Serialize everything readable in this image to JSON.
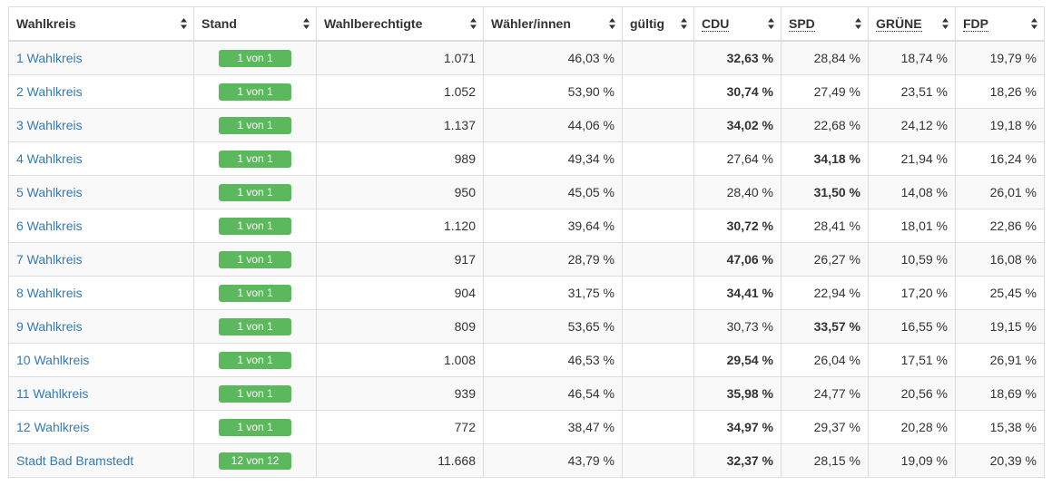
{
  "columns": [
    {
      "key": "wahlkreis",
      "label": "Wahlkreis",
      "party": false
    },
    {
      "key": "stand",
      "label": "Stand",
      "party": false
    },
    {
      "key": "wahlberechtigte",
      "label": "Wahlberechtigte",
      "party": false
    },
    {
      "key": "waehler",
      "label": "Wähler/innen",
      "party": false
    },
    {
      "key": "gueltig",
      "label": "gültig",
      "party": false
    },
    {
      "key": "cdu",
      "label": "CDU",
      "party": true
    },
    {
      "key": "spd",
      "label": "SPD",
      "party": true
    },
    {
      "key": "gruene",
      "label": "GRÜNE",
      "party": true
    },
    {
      "key": "fdp",
      "label": "FDP",
      "party": true
    }
  ],
  "sort_icon": "sort-up-down-icon",
  "colors": {
    "link": "#337ab7",
    "badge": "#5cb85c",
    "stripe": "#f9f9f9",
    "border": "#dddddd"
  },
  "rows": [
    {
      "wahlkreis": "1 Wahlkreis",
      "stand": "1 von 1",
      "wahlberechtigte": "1.071",
      "waehler": "46,03 %",
      "gueltig": "",
      "cdu": "32,63 %",
      "spd": "28,84 %",
      "gruene": "18,74 %",
      "fdp": "19,79 %",
      "winner": "cdu"
    },
    {
      "wahlkreis": "2 Wahlkreis",
      "stand": "1 von 1",
      "wahlberechtigte": "1.052",
      "waehler": "53,90 %",
      "gueltig": "",
      "cdu": "30,74 %",
      "spd": "27,49 %",
      "gruene": "23,51 %",
      "fdp": "18,26 %",
      "winner": "cdu"
    },
    {
      "wahlkreis": "3 Wahlkreis",
      "stand": "1 von 1",
      "wahlberechtigte": "1.137",
      "waehler": "44,06 %",
      "gueltig": "",
      "cdu": "34,02 %",
      "spd": "22,68 %",
      "gruene": "24,12 %",
      "fdp": "19,18 %",
      "winner": "cdu"
    },
    {
      "wahlkreis": "4 Wahlkreis",
      "stand": "1 von 1",
      "wahlberechtigte": "989",
      "waehler": "49,34 %",
      "gueltig": "",
      "cdu": "27,64 %",
      "spd": "34,18 %",
      "gruene": "21,94 %",
      "fdp": "16,24 %",
      "winner": "spd"
    },
    {
      "wahlkreis": "5 Wahlkreis",
      "stand": "1 von 1",
      "wahlberechtigte": "950",
      "waehler": "45,05 %",
      "gueltig": "",
      "cdu": "28,40 %",
      "spd": "31,50 %",
      "gruene": "14,08 %",
      "fdp": "26,01 %",
      "winner": "spd"
    },
    {
      "wahlkreis": "6 Wahlkreis",
      "stand": "1 von 1",
      "wahlberechtigte": "1.120",
      "waehler": "39,64 %",
      "gueltig": "",
      "cdu": "30,72 %",
      "spd": "28,41 %",
      "gruene": "18,01 %",
      "fdp": "22,86 %",
      "winner": "cdu"
    },
    {
      "wahlkreis": "7 Wahlkreis",
      "stand": "1 von 1",
      "wahlberechtigte": "917",
      "waehler": "28,79 %",
      "gueltig": "",
      "cdu": "47,06 %",
      "spd": "26,27 %",
      "gruene": "10,59 %",
      "fdp": "16,08 %",
      "winner": "cdu"
    },
    {
      "wahlkreis": "8 Wahlkreis",
      "stand": "1 von 1",
      "wahlberechtigte": "904",
      "waehler": "31,75 %",
      "gueltig": "",
      "cdu": "34,41 %",
      "spd": "22,94 %",
      "gruene": "17,20 %",
      "fdp": "25,45 %",
      "winner": "cdu"
    },
    {
      "wahlkreis": "9 Wahlkreis",
      "stand": "1 von 1",
      "wahlberechtigte": "809",
      "waehler": "53,65 %",
      "gueltig": "",
      "cdu": "30,73 %",
      "spd": "33,57 %",
      "gruene": "16,55 %",
      "fdp": "19,15 %",
      "winner": "spd"
    },
    {
      "wahlkreis": "10 Wahlkreis",
      "stand": "1 von 1",
      "wahlberechtigte": "1.008",
      "waehler": "46,53 %",
      "gueltig": "",
      "cdu": "29,54 %",
      "spd": "26,04 %",
      "gruene": "17,51 %",
      "fdp": "26,91 %",
      "winner": "cdu"
    },
    {
      "wahlkreis": "11 Wahlkreis",
      "stand": "1 von 1",
      "wahlberechtigte": "939",
      "waehler": "46,54 %",
      "gueltig": "",
      "cdu": "35,98 %",
      "spd": "24,77 %",
      "gruene": "20,56 %",
      "fdp": "18,69 %",
      "winner": "cdu"
    },
    {
      "wahlkreis": "12 Wahlkreis",
      "stand": "1 von 1",
      "wahlberechtigte": "772",
      "waehler": "38,47 %",
      "gueltig": "",
      "cdu": "34,97 %",
      "spd": "29,37 %",
      "gruene": "20,28 %",
      "fdp": "15,38 %",
      "winner": "cdu"
    },
    {
      "wahlkreis": "Stadt Bad Bramstedt",
      "stand": "12 von 12",
      "wahlberechtigte": "11.668",
      "waehler": "43,79 %",
      "gueltig": "",
      "cdu": "32,37 %",
      "spd": "28,15 %",
      "gruene": "19,09 %",
      "fdp": "20,39 %",
      "winner": "cdu"
    }
  ]
}
